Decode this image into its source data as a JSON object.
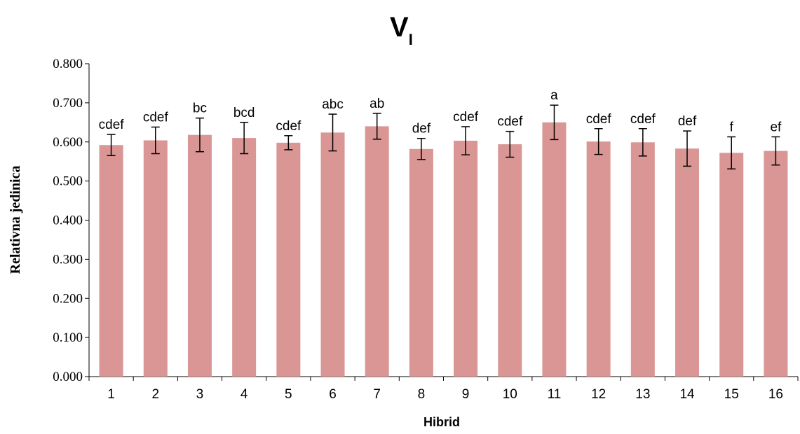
{
  "chart_data": {
    "type": "bar",
    "title": "V",
    "title_subscript": "I",
    "xlabel": "Hibrid",
    "ylabel": "Relativna jedinica",
    "ylim": [
      0,
      0.8
    ],
    "ytick_labels": [
      "0.000",
      "0.100",
      "0.200",
      "0.300",
      "0.400",
      "0.500",
      "0.600",
      "0.700",
      "0.800"
    ],
    "categories": [
      "1",
      "2",
      "3",
      "4",
      "5",
      "6",
      "7",
      "8",
      "9",
      "10",
      "11",
      "12",
      "13",
      "14",
      "15",
      "16"
    ],
    "values": [
      0.592,
      0.604,
      0.618,
      0.61,
      0.598,
      0.624,
      0.64,
      0.582,
      0.603,
      0.594,
      0.65,
      0.601,
      0.599,
      0.583,
      0.572,
      0.577
    ],
    "errors": [
      0.027,
      0.034,
      0.043,
      0.04,
      0.018,
      0.047,
      0.033,
      0.027,
      0.036,
      0.033,
      0.044,
      0.033,
      0.035,
      0.045,
      0.041,
      0.036
    ],
    "data_labels": [
      "cdef",
      "cdef",
      "bc",
      "bcd",
      "cdef",
      "abc",
      "ab",
      "def",
      "cdef",
      "cdef",
      "a",
      "cdef",
      "cdef",
      "def",
      "f",
      "ef"
    ],
    "bar_color": "#d99694",
    "grid": false,
    "legend": "none"
  }
}
